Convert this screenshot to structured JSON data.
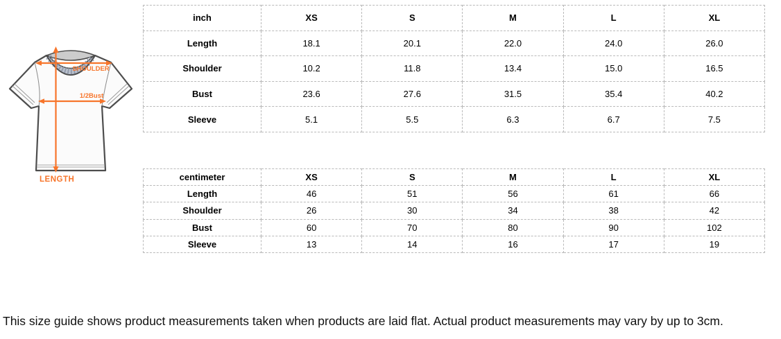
{
  "size_guide": {
    "diagram": {
      "shoulder_label": "SHOULDER",
      "bust_label": "1/2Bust",
      "length_label": "LENGTH",
      "accent_color": "#f7752b"
    },
    "tables": [
      {
        "unit": "inch",
        "sizes": [
          "XS",
          "S",
          "M",
          "L",
          "XL"
        ],
        "rows": [
          {
            "label": "Length",
            "values": [
              "18.1",
              "20.1",
              "22.0",
              "24.0",
              "26.0"
            ]
          },
          {
            "label": "Shoulder",
            "values": [
              "10.2",
              "11.8",
              "13.4",
              "15.0",
              "16.5"
            ]
          },
          {
            "label": "Bust",
            "values": [
              "23.6",
              "27.6",
              "31.5",
              "35.4",
              "40.2"
            ]
          },
          {
            "label": "Sleeve",
            "values": [
              "5.1",
              "5.5",
              "6.3",
              "6.7",
              "7.5"
            ]
          }
        ]
      },
      {
        "unit": "centimeter",
        "sizes": [
          "XS",
          "S",
          "M",
          "L",
          "XL"
        ],
        "rows": [
          {
            "label": "Length",
            "values": [
              "46",
              "51",
              "56",
              "61",
              "66"
            ]
          },
          {
            "label": "Shoulder",
            "values": [
              "26",
              "30",
              "34",
              "38",
              "42"
            ]
          },
          {
            "label": "Bust",
            "values": [
              "60",
              "70",
              "80",
              "90",
              "102"
            ]
          },
          {
            "label": "Sleeve",
            "values": [
              "13",
              "14",
              "16",
              "17",
              "19"
            ]
          }
        ]
      }
    ],
    "footer_note": "This size guide shows product measurements taken when products are laid flat. Actual product measurements may vary by up to 3cm."
  }
}
